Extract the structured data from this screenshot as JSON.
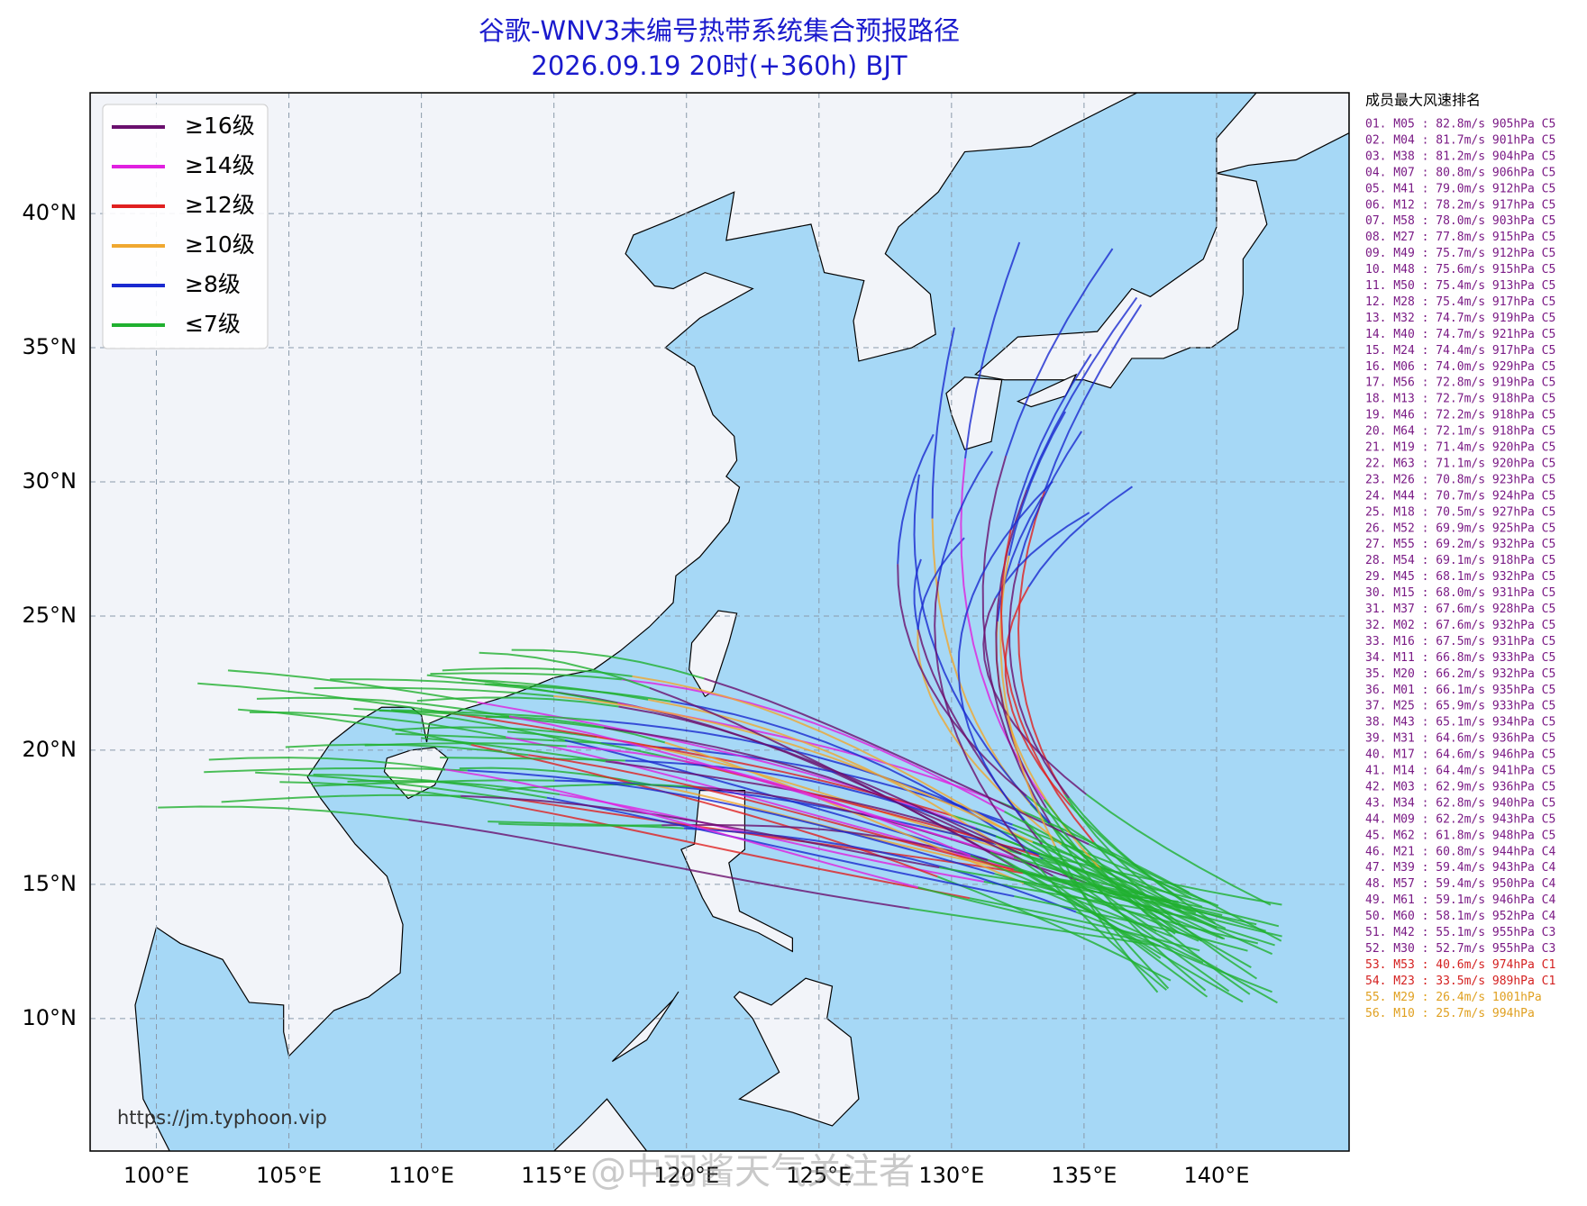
{
  "title": "谷歌-WNV3未编号热带系统集合预报路径",
  "subtitle": "2026.09.19 20时(+360h) BJT",
  "legend": [
    {
      "label": "≥16级",
      "color": "#6a0f6e"
    },
    {
      "label": "≥14级",
      "color": "#e020e0"
    },
    {
      "label": "≥12级",
      "color": "#e02020"
    },
    {
      "label": "≥10级",
      "color": "#f0a830"
    },
    {
      "label": "≥8级",
      "color": "#1a2ad0"
    },
    {
      "label": "≤7级",
      "color": "#20b030"
    }
  ],
  "map": {
    "xlim": [
      97.5,
      145
    ],
    "ylim": [
      5.06,
      44.5
    ],
    "xticks": [
      {
        "value": 100,
        "label": "100°E"
      },
      {
        "value": 105,
        "label": "105°E"
      },
      {
        "value": 110,
        "label": "110°E"
      },
      {
        "value": 115,
        "label": "115°E"
      },
      {
        "value": 120,
        "label": "120°E"
      },
      {
        "value": 125,
        "label": "125°E"
      },
      {
        "value": 130,
        "label": "130°E"
      },
      {
        "value": 135,
        "label": "135°E"
      },
      {
        "value": 140,
        "label": "140°E"
      }
    ],
    "yticks": [
      {
        "value": 10,
        "label": "10°N"
      },
      {
        "value": 15,
        "label": "15°N"
      },
      {
        "value": 20,
        "label": "20°N"
      },
      {
        "value": 25,
        "label": "25°N"
      },
      {
        "value": 30,
        "label": "30°N"
      },
      {
        "value": 35,
        "label": "35°N"
      },
      {
        "value": 40,
        "label": "40°N"
      }
    ]
  },
  "ranking": {
    "title": "成员最大风速排名",
    "items": [
      {
        "text": "01. M05 : 82.8m/s 905hPa C5",
        "color": "#7a1a85"
      },
      {
        "text": "02. M04 : 81.7m/s 901hPa C5",
        "color": "#7a1a85"
      },
      {
        "text": "03. M38 : 81.2m/s 904hPa C5",
        "color": "#7a1a85"
      },
      {
        "text": "04. M07 : 80.8m/s 906hPa C5",
        "color": "#7a1a85"
      },
      {
        "text": "05. M41 : 79.0m/s 912hPa C5",
        "color": "#7a1a85"
      },
      {
        "text": "06. M12 : 78.2m/s 917hPa C5",
        "color": "#7a1a85"
      },
      {
        "text": "07. M58 : 78.0m/s 903hPa C5",
        "color": "#7a1a85"
      },
      {
        "text": "08. M27 : 77.8m/s 915hPa C5",
        "color": "#7a1a85"
      },
      {
        "text": "09. M49 : 75.7m/s 912hPa C5",
        "color": "#7a1a85"
      },
      {
        "text": "10. M48 : 75.6m/s 915hPa C5",
        "color": "#7a1a85"
      },
      {
        "text": "11. M50 : 75.4m/s 913hPa C5",
        "color": "#7a1a85"
      },
      {
        "text": "12. M28 : 75.4m/s 917hPa C5",
        "color": "#7a1a85"
      },
      {
        "text": "13. M32 : 74.7m/s 919hPa C5",
        "color": "#7a1a85"
      },
      {
        "text": "14. M40 : 74.7m/s 921hPa C5",
        "color": "#7a1a85"
      },
      {
        "text": "15. M24 : 74.4m/s 917hPa C5",
        "color": "#7a1a85"
      },
      {
        "text": "16. M06 : 74.0m/s 929hPa C5",
        "color": "#7a1a85"
      },
      {
        "text": "17. M56 : 72.8m/s 919hPa C5",
        "color": "#7a1a85"
      },
      {
        "text": "18. M13 : 72.7m/s 918hPa C5",
        "color": "#7a1a85"
      },
      {
        "text": "19. M46 : 72.2m/s 918hPa C5",
        "color": "#7a1a85"
      },
      {
        "text": "20. M64 : 72.1m/s 918hPa C5",
        "color": "#7a1a85"
      },
      {
        "text": "21. M19 : 71.4m/s 920hPa C5",
        "color": "#7a1a85"
      },
      {
        "text": "22. M63 : 71.1m/s 920hPa C5",
        "color": "#7a1a85"
      },
      {
        "text": "23. M26 : 70.8m/s 923hPa C5",
        "color": "#7a1a85"
      },
      {
        "text": "24. M44 : 70.7m/s 924hPa C5",
        "color": "#7a1a85"
      },
      {
        "text": "25. M18 : 70.5m/s 927hPa C5",
        "color": "#7a1a85"
      },
      {
        "text": "26. M52 : 69.9m/s 925hPa C5",
        "color": "#7a1a85"
      },
      {
        "text": "27. M55 : 69.2m/s 932hPa C5",
        "color": "#7a1a85"
      },
      {
        "text": "28. M54 : 69.1m/s 918hPa C5",
        "color": "#7a1a85"
      },
      {
        "text": "29. M45 : 68.1m/s 932hPa C5",
        "color": "#7a1a85"
      },
      {
        "text": "30. M15 : 68.0m/s 931hPa C5",
        "color": "#7a1a85"
      },
      {
        "text": "31. M37 : 67.6m/s 928hPa C5",
        "color": "#7a1a85"
      },
      {
        "text": "32. M02 : 67.6m/s 932hPa C5",
        "color": "#7a1a85"
      },
      {
        "text": "33. M16 : 67.5m/s 931hPa C5",
        "color": "#7a1a85"
      },
      {
        "text": "34. M11 : 66.8m/s 933hPa C5",
        "color": "#7a1a85"
      },
      {
        "text": "35. M20 : 66.2m/s 932hPa C5",
        "color": "#7a1a85"
      },
      {
        "text": "36. M01 : 66.1m/s 935hPa C5",
        "color": "#7a1a85"
      },
      {
        "text": "37. M25 : 65.9m/s 933hPa C5",
        "color": "#7a1a85"
      },
      {
        "text": "38. M43 : 65.1m/s 934hPa C5",
        "color": "#7a1a85"
      },
      {
        "text": "39. M31 : 64.6m/s 936hPa C5",
        "color": "#7a1a85"
      },
      {
        "text": "40. M17 : 64.6m/s 946hPa C5",
        "color": "#7a1a85"
      },
      {
        "text": "41. M14 : 64.4m/s 941hPa C5",
        "color": "#7a1a85"
      },
      {
        "text": "42. M03 : 62.9m/s 936hPa C5",
        "color": "#7a1a85"
      },
      {
        "text": "43. M34 : 62.8m/s 940hPa C5",
        "color": "#7a1a85"
      },
      {
        "text": "44. M09 : 62.2m/s 943hPa C5",
        "color": "#7a1a85"
      },
      {
        "text": "45. M62 : 61.8m/s 948hPa C5",
        "color": "#7a1a85"
      },
      {
        "text": "46. M21 : 60.8m/s 944hPa C4",
        "color": "#7a1a85"
      },
      {
        "text": "47. M39 : 59.4m/s 943hPa C4",
        "color": "#7a1a85"
      },
      {
        "text": "48. M57 : 59.4m/s 950hPa C4",
        "color": "#7a1a85"
      },
      {
        "text": "49. M61 : 59.1m/s 946hPa C4",
        "color": "#7a1a85"
      },
      {
        "text": "50. M60 : 58.1m/s 952hPa C4",
        "color": "#7a1a85"
      },
      {
        "text": "51. M42 : 55.1m/s 955hPa C3",
        "color": "#7a1a85"
      },
      {
        "text": "52. M30 : 52.7m/s 955hPa C3",
        "color": "#7a1a85"
      },
      {
        "text": "53. M53 : 40.6m/s 974hPa C1",
        "color": "#d42020"
      },
      {
        "text": "54. M23 : 33.5m/s 989hPa C1",
        "color": "#d42020"
      },
      {
        "text": "55. M29 : 26.4m/s 1001hPa",
        "color": "#e0a020"
      },
      {
        "text": "56. M10 : 25.7m/s 994hPa",
        "color": "#e0a020"
      }
    ]
  },
  "url": "https://jm.typhoon.vip",
  "watermark": "@中羽酱天气关注者"
}
